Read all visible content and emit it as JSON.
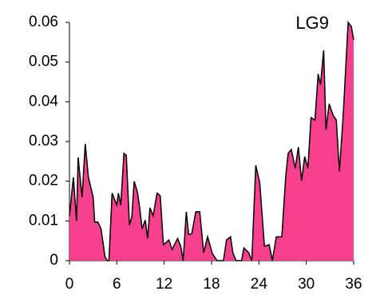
{
  "chart_data": {
    "type": "area",
    "annotation": "LG9",
    "x": [
      0,
      0.5,
      0.9,
      1.1,
      1.6,
      2,
      2.4,
      3,
      3.2,
      3.6,
      4,
      4.5,
      4.8,
      5,
      5.4,
      6,
      6.2,
      6.5,
      6.9,
      7.2,
      7.6,
      7.9,
      8.2,
      8.6,
      8.9,
      9.2,
      9.6,
      9.9,
      10.2,
      10.6,
      11.1,
      11.5,
      11.9,
      12.6,
      13,
      13.7,
      14.1,
      14.4,
      14.8,
      15.1,
      15.5,
      16,
      16.5,
      17,
      17.5,
      18.1,
      18.7,
      19.5,
      19.9,
      20.4,
      20.7,
      21.1,
      21.8,
      22.1,
      22.7,
      23.1,
      23.6,
      24.1,
      24.7,
      25.3,
      25.7,
      26.2,
      26.9,
      27.4,
      27.7,
      28.1,
      28.6,
      29,
      29.4,
      29.8,
      30.2,
      30.6,
      31.1,
      31.5,
      31.8,
      32.2,
      32.5,
      32.9,
      33.4,
      33.8,
      34.2,
      34.7,
      35.3,
      35.7,
      36
    ],
    "series": [
      {
        "color": "#f7418f",
        "values": [
          0.0113,
          0.021,
          0.01,
          0.026,
          0.016,
          0.0294,
          0.021,
          0.016,
          0.0097,
          0.0097,
          0.008,
          0.001,
          0,
          0,
          0.017,
          0.014,
          0.017,
          0.014,
          0.027,
          0.0265,
          0.009,
          0.011,
          0.02,
          0.0173,
          0.0133,
          0.008,
          0.0102,
          0.0056,
          0.0133,
          0.0113,
          0.017,
          0.0163,
          0.004,
          0.0052,
          0.0028,
          0.0056,
          0.0036,
          0,
          0.0123,
          0.0066,
          0.0068,
          0.0123,
          0.0123,
          0.002,
          0.006,
          0.0018,
          0,
          0,
          0.0052,
          0.006,
          0.002,
          0,
          0,
          0.0032,
          0.002,
          0,
          0.024,
          0.0197,
          0.0036,
          0.004,
          0,
          0.006,
          0.006,
          0.0213,
          0.027,
          0.028,
          0.0233,
          0.0286,
          0.0201,
          0.0262,
          0.0233,
          0.036,
          0.0354,
          0.047,
          0.0443,
          0.053,
          0.033,
          0.0395,
          0.0366,
          0.0354,
          0.0225,
          0.0374,
          0.06,
          0.059,
          0.0556
        ]
      }
    ],
    "xlim": [
      0,
      36
    ],
    "xticks": [
      0,
      6,
      12,
      18,
      24,
      30,
      36
    ],
    "ylim": [
      0,
      0.06
    ],
    "yticks": [
      0,
      0.01,
      0.02,
      0.03,
      0.04,
      0.05,
      0.06
    ]
  }
}
